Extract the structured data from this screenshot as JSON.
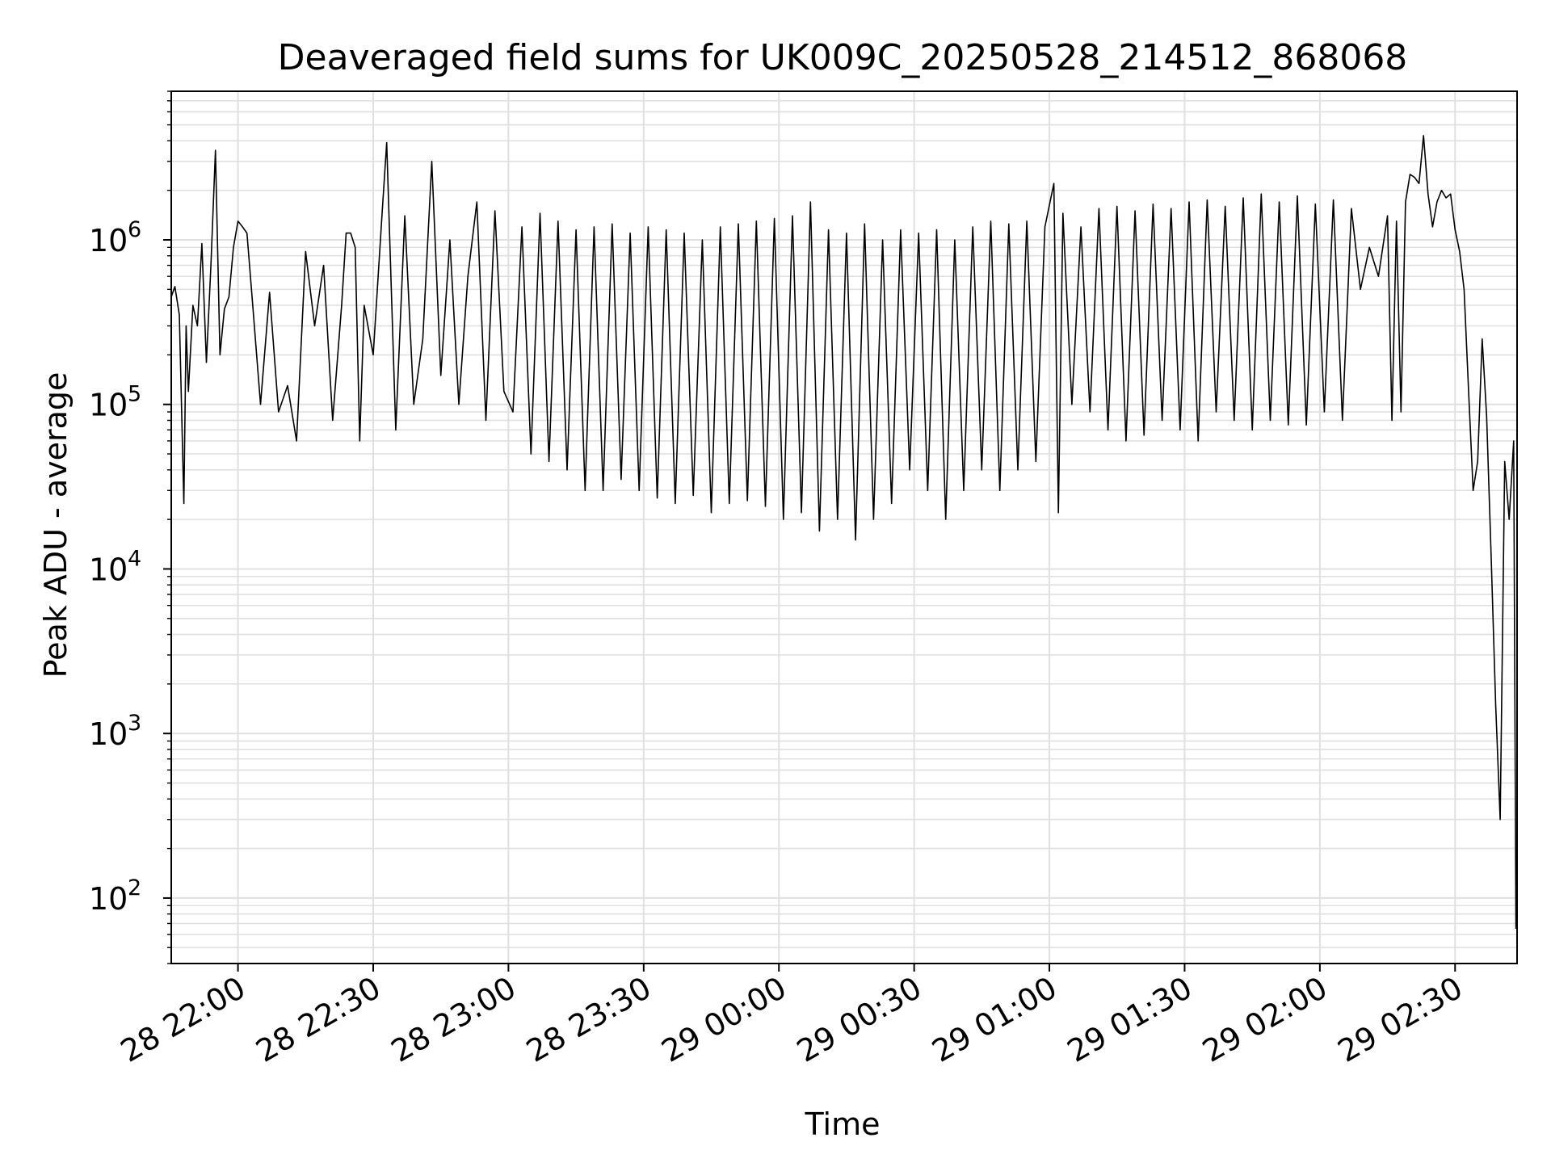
{
  "chart_data": {
    "type": "line",
    "title": "Deaveraged field sums for UK009C_20250528_214512_868068",
    "xlabel": "Time",
    "ylabel": "Peak ADU - average",
    "yscale": "log",
    "ylim": [
      40,
      8000000
    ],
    "xlim": [
      "2025-05-28 21:45:12",
      "2025-05-29 02:43:45"
    ],
    "grid": true,
    "line_color": "#000000",
    "grid_color": "#e0e0e0",
    "x_ticks": [
      {
        "t": "2025-05-28 22:00:00",
        "label": "28 22:00"
      },
      {
        "t": "2025-05-28 22:30:00",
        "label": "28 22:30"
      },
      {
        "t": "2025-05-28 23:00:00",
        "label": "28 23:00"
      },
      {
        "t": "2025-05-28 23:30:00",
        "label": "28 23:30"
      },
      {
        "t": "2025-05-29 00:00:00",
        "label": "29 00:00"
      },
      {
        "t": "2025-05-29 00:30:00",
        "label": "29 00:30"
      },
      {
        "t": "2025-05-29 01:00:00",
        "label": "29 01:00"
      },
      {
        "t": "2025-05-29 01:30:00",
        "label": "29 01:30"
      },
      {
        "t": "2025-05-29 02:00:00",
        "label": "29 02:00"
      },
      {
        "t": "2025-05-29 02:30:00",
        "label": "29 02:30"
      }
    ],
    "y_ticks": [
      {
        "value": 100,
        "base": "10",
        "exp": "2"
      },
      {
        "value": 1000,
        "base": "10",
        "exp": "3"
      },
      {
        "value": 10000,
        "base": "10",
        "exp": "4"
      },
      {
        "value": 100000,
        "base": "10",
        "exp": "5"
      },
      {
        "value": 1000000,
        "base": "10",
        "exp": "6"
      }
    ],
    "x": [
      "2025-05-28 21:45:12",
      "2025-05-28 21:46:00",
      "2025-05-28 21:47:00",
      "2025-05-28 21:48:00",
      "2025-05-28 21:48:30",
      "2025-05-28 21:49:00",
      "2025-05-28 21:50:00",
      "2025-05-28 21:51:00",
      "2025-05-28 21:52:00",
      "2025-05-28 21:53:00",
      "2025-05-28 21:54:00",
      "2025-05-28 21:55:00",
      "2025-05-28 21:56:00",
      "2025-05-28 21:57:00",
      "2025-05-28 21:58:00",
      "2025-05-28 21:59:00",
      "2025-05-28 22:00:00",
      "2025-05-28 22:01:00",
      "2025-05-28 22:02:00",
      "2025-05-28 22:03:00",
      "2025-05-28 22:05:00",
      "2025-05-28 22:07:00",
      "2025-05-28 22:09:00",
      "2025-05-28 22:11:00",
      "2025-05-28 22:13:00",
      "2025-05-28 22:15:00",
      "2025-05-28 22:17:00",
      "2025-05-28 22:19:00",
      "2025-05-28 22:21:00",
      "2025-05-28 22:23:00",
      "2025-05-28 22:24:00",
      "2025-05-28 22:25:00",
      "2025-05-28 22:26:00",
      "2025-05-28 22:27:00",
      "2025-05-28 22:28:00",
      "2025-05-28 22:30:00",
      "2025-05-28 22:32:00",
      "2025-05-28 22:33:00",
      "2025-05-28 22:35:00",
      "2025-05-28 22:37:00",
      "2025-05-28 22:39:00",
      "2025-05-28 22:41:00",
      "2025-05-28 22:43:00",
      "2025-05-28 22:45:00",
      "2025-05-28 22:47:00",
      "2025-05-28 22:49:00",
      "2025-05-28 22:51:00",
      "2025-05-28 22:53:00",
      "2025-05-28 22:55:00",
      "2025-05-28 22:57:00",
      "2025-05-28 22:59:00",
      "2025-05-28 23:01:00",
      "2025-05-28 23:03:00",
      "2025-05-28 23:05:00",
      "2025-05-28 23:07:00",
      "2025-05-28 23:09:00",
      "2025-05-28 23:11:00",
      "2025-05-28 23:13:00",
      "2025-05-28 23:15:00",
      "2025-05-28 23:17:00",
      "2025-05-28 23:19:00",
      "2025-05-28 23:21:00",
      "2025-05-28 23:23:00",
      "2025-05-28 23:25:00",
      "2025-05-28 23:27:00",
      "2025-05-28 23:29:00",
      "2025-05-28 23:31:00",
      "2025-05-28 23:33:00",
      "2025-05-28 23:35:00",
      "2025-05-28 23:37:00",
      "2025-05-28 23:39:00",
      "2025-05-28 23:41:00",
      "2025-05-28 23:43:00",
      "2025-05-28 23:45:00",
      "2025-05-28 23:47:00",
      "2025-05-28 23:49:00",
      "2025-05-28 23:51:00",
      "2025-05-28 23:53:00",
      "2025-05-28 23:55:00",
      "2025-05-28 23:57:00",
      "2025-05-28 23:59:00",
      "2025-05-29 00:01:00",
      "2025-05-29 00:03:00",
      "2025-05-29 00:05:00",
      "2025-05-29 00:07:00",
      "2025-05-29 00:09:00",
      "2025-05-29 00:11:00",
      "2025-05-29 00:13:00",
      "2025-05-29 00:15:00",
      "2025-05-29 00:17:00",
      "2025-05-29 00:19:00",
      "2025-05-29 00:21:00",
      "2025-05-29 00:23:00",
      "2025-05-29 00:25:00",
      "2025-05-29 00:27:00",
      "2025-05-29 00:29:00",
      "2025-05-29 00:31:00",
      "2025-05-29 00:33:00",
      "2025-05-29 00:35:00",
      "2025-05-29 00:37:00",
      "2025-05-29 00:39:00",
      "2025-05-29 00:41:00",
      "2025-05-29 00:43:00",
      "2025-05-29 00:45:00",
      "2025-05-29 00:47:00",
      "2025-05-29 00:49:00",
      "2025-05-29 00:51:00",
      "2025-05-29 00:53:00",
      "2025-05-29 00:55:00",
      "2025-05-29 00:57:00",
      "2025-05-29 00:59:00",
      "2025-05-29 01:01:00",
      "2025-05-29 01:02:00",
      "2025-05-29 01:03:00",
      "2025-05-29 01:05:00",
      "2025-05-29 01:07:00",
      "2025-05-29 01:09:00",
      "2025-05-29 01:11:00",
      "2025-05-29 01:13:00",
      "2025-05-29 01:15:00",
      "2025-05-29 01:17:00",
      "2025-05-29 01:19:00",
      "2025-05-29 01:21:00",
      "2025-05-29 01:23:00",
      "2025-05-29 01:25:00",
      "2025-05-29 01:27:00",
      "2025-05-29 01:29:00",
      "2025-05-29 01:31:00",
      "2025-05-29 01:33:00",
      "2025-05-29 01:35:00",
      "2025-05-29 01:37:00",
      "2025-05-29 01:39:00",
      "2025-05-29 01:41:00",
      "2025-05-29 01:43:00",
      "2025-05-29 01:45:00",
      "2025-05-29 01:47:00",
      "2025-05-29 01:49:00",
      "2025-05-29 01:51:00",
      "2025-05-29 01:53:00",
      "2025-05-29 01:55:00",
      "2025-05-29 01:57:00",
      "2025-05-29 01:59:00",
      "2025-05-29 02:01:00",
      "2025-05-29 02:03:00",
      "2025-05-29 02:05:00",
      "2025-05-29 02:07:00",
      "2025-05-29 02:09:00",
      "2025-05-29 02:11:00",
      "2025-05-29 02:13:00",
      "2025-05-29 02:15:00",
      "2025-05-29 02:16:00",
      "2025-05-29 02:17:00",
      "2025-05-29 02:18:00",
      "2025-05-29 02:19:00",
      "2025-05-29 02:20:00",
      "2025-05-29 02:21:00",
      "2025-05-29 02:22:00",
      "2025-05-29 02:23:00",
      "2025-05-29 02:24:00",
      "2025-05-29 02:25:00",
      "2025-05-29 02:26:00",
      "2025-05-29 02:27:00",
      "2025-05-29 02:28:00",
      "2025-05-29 02:29:00",
      "2025-05-29 02:30:00",
      "2025-05-29 02:31:00",
      "2025-05-29 02:32:00",
      "2025-05-29 02:33:00",
      "2025-05-29 02:34:00",
      "2025-05-29 02:35:00",
      "2025-05-29 02:36:00",
      "2025-05-29 02:37:00",
      "2025-05-29 02:38:00",
      "2025-05-29 02:39:00",
      "2025-05-29 02:40:00",
      "2025-05-29 02:41:00",
      "2025-05-29 02:42:00",
      "2025-05-29 02:43:00",
      "2025-05-29 02:43:30"
    ],
    "y": [
      450000,
      520000,
      350000,
      25000,
      300000,
      120000,
      400000,
      300000,
      950000,
      180000,
      700000,
      3500000,
      200000,
      380000,
      450000,
      900000,
      1300000,
      1200000,
      1100000,
      500000,
      100000,
      480000,
      90000,
      130000,
      60000,
      850000,
      300000,
      700000,
      80000,
      400000,
      1100000,
      1100000,
      900000,
      60000,
      400000,
      200000,
      1500000,
      3900000,
      70000,
      1400000,
      100000,
      250000,
      3000000,
      150000,
      1000000,
      100000,
      600000,
      1700000,
      80000,
      1500000,
      120000,
      90000,
      1200000,
      50000,
      1450000,
      45000,
      1300000,
      40000,
      1150000,
      30000,
      1200000,
      30000,
      1250000,
      35000,
      1100000,
      30000,
      1200000,
      27000,
      1150000,
      25000,
      1100000,
      28000,
      1000000,
      22000,
      1200000,
      25000,
      1250000,
      26000,
      1300000,
      24000,
      1350000,
      20000,
      1400000,
      22000,
      1700000,
      17000,
      1150000,
      20000,
      1100000,
      15000,
      1250000,
      20000,
      1000000,
      25000,
      1150000,
      40000,
      1100000,
      30000,
      1150000,
      20000,
      1000000,
      30000,
      1200000,
      40000,
      1300000,
      30000,
      1250000,
      40000,
      1300000,
      45000,
      1200000,
      2200000,
      22000,
      1450000,
      100000,
      1200000,
      90000,
      1550000,
      70000,
      1600000,
      60000,
      1500000,
      65000,
      1650000,
      80000,
      1550000,
      70000,
      1700000,
      60000,
      1750000,
      90000,
      1600000,
      80000,
      1800000,
      70000,
      1900000,
      80000,
      1700000,
      75000,
      1850000,
      75000,
      1650000,
      90000,
      1750000,
      80000,
      1550000,
      500000,
      900000,
      600000,
      1400000,
      80000,
      1300000,
      90000,
      1700000,
      2500000,
      2400000,
      2200000,
      4300000,
      1900000,
      1200000,
      1700000,
      2000000,
      1800000,
      1900000,
      1150000,
      850000,
      500000,
      120000,
      30000,
      45000,
      250000,
      85000,
      12000,
      1500,
      300,
      45000,
      20000,
      60000,
      65
    ]
  }
}
